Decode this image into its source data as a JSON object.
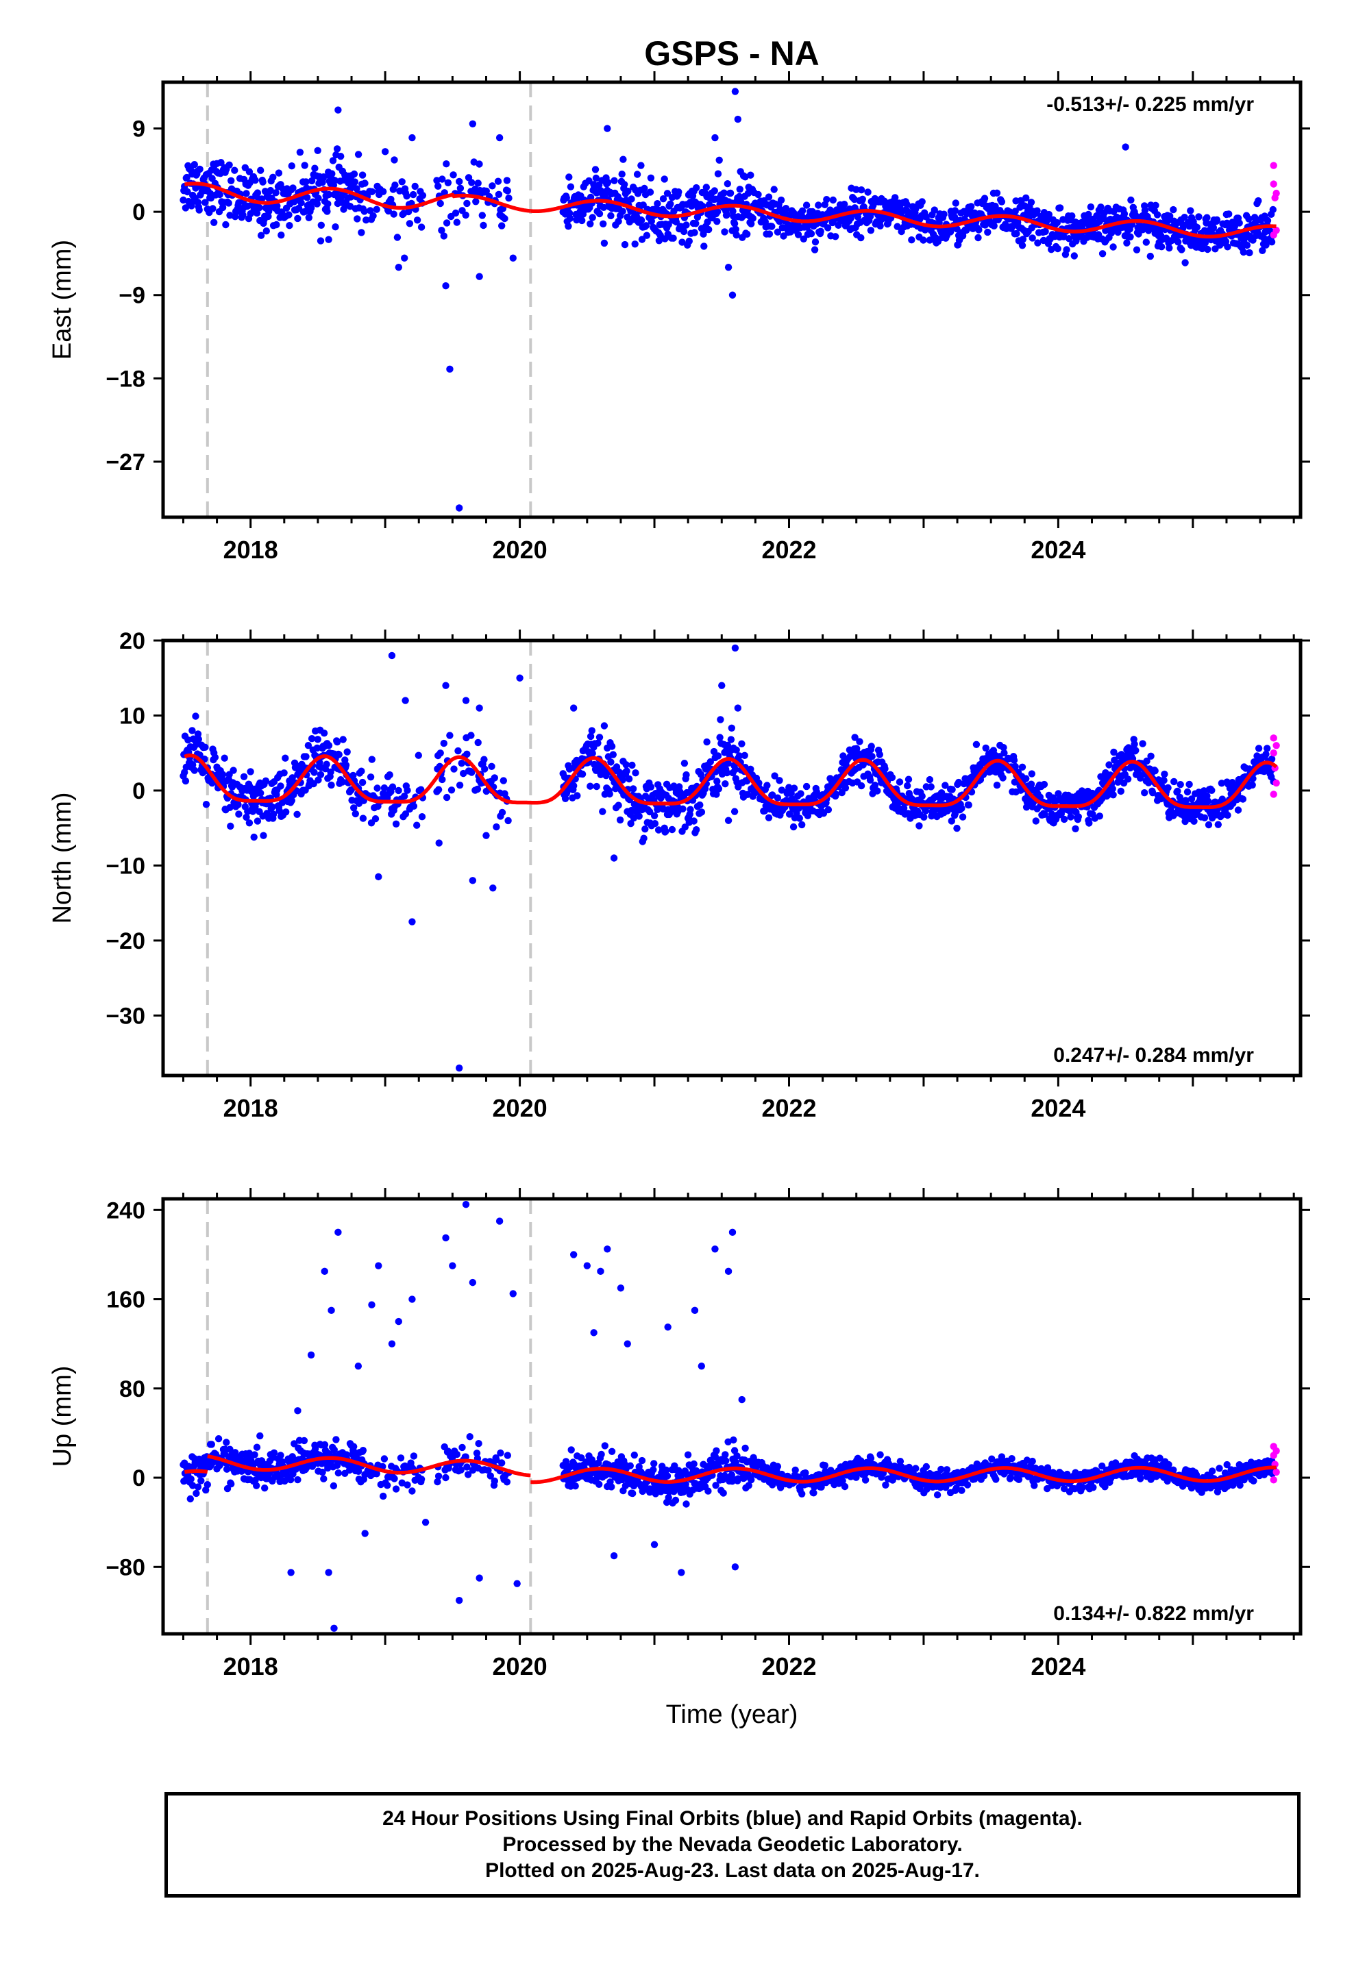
{
  "title": "GSPS - NA",
  "xlabel": "Time (year)",
  "caption": [
    "24 Hour Positions Using Final Orbits (blue) and Rapid Orbits (magenta).",
    "Processed by the Nevada Geodetic Laboratory.",
    "Plotted on 2025-Aug-23. Last data on 2025-Aug-17."
  ],
  "colors": {
    "final": "#0000ff",
    "rapid": "#ff00ff",
    "model": "#ff0000",
    "event": "#c8c8c8"
  },
  "chart_data": [
    {
      "type": "scatter",
      "ylabel": "East (mm)",
      "rate": "-0.513+/- 0.225 mm/yr",
      "rate_position": "top-right",
      "xlim": [
        2017.35,
        2025.8
      ],
      "ylim": [
        -33,
        14
      ],
      "yticks": [
        9,
        0,
        -9,
        -18,
        -27
      ],
      "ytick_labels": [
        "9",
        "0",
        "−9",
        "−18",
        "−27"
      ],
      "xticks": [
        2018,
        2020,
        2022,
        2024
      ],
      "event_lines": [
        2017.68,
        2020.08
      ],
      "series": [
        {
          "name": "Final Orbits",
          "color": "#0000ff",
          "outliers": [
            [
              2018.65,
              11
            ],
            [
              2019.0,
              6.5
            ],
            [
              2019.2,
              8
            ],
            [
              2019.45,
              -8
            ],
            [
              2019.48,
              -17
            ],
            [
              2019.55,
              -32
            ],
            [
              2019.65,
              9.5
            ],
            [
              2019.7,
              -7
            ],
            [
              2019.85,
              8
            ],
            [
              2019.95,
              -5
            ],
            [
              2020.9,
              5
            ],
            [
              2021.45,
              8
            ],
            [
              2021.55,
              -6
            ],
            [
              2021.58,
              -9
            ],
            [
              2021.6,
              13
            ],
            [
              2021.62,
              10
            ],
            [
              2020.65,
              9
            ],
            [
              2019.1,
              -6
            ],
            [
              2024.5,
              7
            ],
            [
              2018.58,
              -3
            ]
          ]
        },
        {
          "name": "Rapid Orbits",
          "color": "#ff00ff",
          "points": [
            [
              2025.6,
              5
            ],
            [
              2025.6,
              3
            ],
            [
              2025.61,
              1.5
            ],
            [
              2025.62,
              -2
            ],
            [
              2025.6,
              -2.5
            ],
            [
              2025.62,
              2
            ]
          ]
        }
      ],
      "model": {
        "components": [
          {
            "from": 2017.35,
            "to": 2020.08,
            "offset": 0
          },
          {
            "from": 2020.08,
            "to": 2025.62,
            "offset": 0
          }
        ]
      }
    },
    {
      "type": "scatter",
      "ylabel": "North (mm)",
      "rate": "0.247+/- 0.284 mm/yr",
      "rate_position": "bottom-right",
      "xlim": [
        2017.35,
        2025.8
      ],
      "ylim": [
        -38,
        20
      ],
      "yticks": [
        20,
        10,
        0,
        -10,
        -20,
        -30
      ],
      "ytick_labels": [
        "20",
        "10",
        "0",
        "−10",
        "−20",
        "−30"
      ],
      "xticks": [
        2018,
        2020,
        2022,
        2024
      ],
      "event_lines": [
        2017.68,
        2020.08
      ],
      "series": [
        {
          "name": "Final Orbits",
          "color": "#0000ff",
          "outliers": [
            [
              2018.95,
              -11.5
            ],
            [
              2019.05,
              18
            ],
            [
              2019.15,
              12
            ],
            [
              2019.2,
              -17.5
            ],
            [
              2019.45,
              14
            ],
            [
              2019.55,
              -37
            ],
            [
              2019.6,
              12
            ],
            [
              2019.65,
              -12
            ],
            [
              2019.8,
              -13
            ],
            [
              2020.0,
              15
            ],
            [
              2019.4,
              -7
            ],
            [
              2019.7,
              11
            ],
            [
              2020.7,
              -9
            ],
            [
              2021.5,
              14
            ],
            [
              2021.6,
              19
            ],
            [
              2021.62,
              11
            ],
            [
              2021.55,
              -4
            ],
            [
              2020.4,
              11
            ],
            [
              2019.75,
              -6
            ]
          ]
        },
        {
          "name": "Rapid Orbits",
          "color": "#ff00ff",
          "points": [
            [
              2025.6,
              7
            ],
            [
              2025.6,
              5
            ],
            [
              2025.61,
              3
            ],
            [
              2025.62,
              1
            ],
            [
              2025.6,
              -0.5
            ],
            [
              2025.62,
              6
            ]
          ]
        }
      ],
      "model": {
        "components": [
          {
            "from": 2017.35,
            "to": 2025.62,
            "offset": 0
          }
        ]
      }
    },
    {
      "type": "scatter",
      "ylabel": "Up (mm)",
      "rate": "0.134+/- 0.822 mm/yr",
      "rate_position": "bottom-right",
      "xlim": [
        2017.35,
        2025.8
      ],
      "ylim": [
        -140,
        250
      ],
      "yticks": [
        240,
        160,
        80,
        0,
        -80
      ],
      "ytick_labels": [
        "240",
        "160",
        "80",
        "0",
        "−80"
      ],
      "xticks": [
        2018,
        2020,
        2022,
        2024
      ],
      "event_lines": [
        2017.68,
        2020.08
      ],
      "series": [
        {
          "name": "Final Orbits",
          "color": "#0000ff",
          "outliers": [
            [
              2018.55,
              185
            ],
            [
              2018.6,
              150
            ],
            [
              2018.65,
              220
            ],
            [
              2018.58,
              -85
            ],
            [
              2018.62,
              -135
            ],
            [
              2018.9,
              155
            ],
            [
              2018.95,
              190
            ],
            [
              2019.1,
              140
            ],
            [
              2019.2,
              160
            ],
            [
              2019.45,
              215
            ],
            [
              2019.5,
              190
            ],
            [
              2019.55,
              -110
            ],
            [
              2019.6,
              245
            ],
            [
              2019.65,
              175
            ],
            [
              2019.7,
              -90
            ],
            [
              2019.85,
              230
            ],
            [
              2019.95,
              165
            ],
            [
              2019.98,
              -95
            ],
            [
              2020.4,
              200
            ],
            [
              2020.5,
              190
            ],
            [
              2020.6,
              185
            ],
            [
              2020.65,
              205
            ],
            [
              2020.7,
              -70
            ],
            [
              2020.75,
              170
            ],
            [
              2021.1,
              135
            ],
            [
              2021.2,
              -85
            ],
            [
              2021.3,
              150
            ],
            [
              2021.45,
              205
            ],
            [
              2021.55,
              185
            ],
            [
              2021.58,
              220
            ],
            [
              2021.6,
              -80
            ],
            [
              2021.65,
              70
            ],
            [
              2018.3,
              -85
            ],
            [
              2018.35,
              60
            ],
            [
              2018.45,
              110
            ],
            [
              2018.8,
              100
            ],
            [
              2018.85,
              -50
            ],
            [
              2019.05,
              120
            ],
            [
              2019.3,
              -40
            ],
            [
              2020.55,
              130
            ],
            [
              2020.8,
              120
            ],
            [
              2021.0,
              -60
            ],
            [
              2021.35,
              100
            ]
          ]
        },
        {
          "name": "Rapid Orbits",
          "color": "#ff00ff",
          "points": [
            [
              2025.6,
              28
            ],
            [
              2025.6,
              20
            ],
            [
              2025.61,
              12
            ],
            [
              2025.62,
              5
            ],
            [
              2025.6,
              -2
            ],
            [
              2025.62,
              24
            ]
          ]
        }
      ],
      "model": {
        "components": [
          {
            "from": 2017.35,
            "to": 2017.68,
            "offset": 0
          },
          {
            "from": 2017.68,
            "to": 2020.08,
            "offset": 0
          },
          {
            "from": 2020.08,
            "to": 2025.62,
            "offset": 0
          }
        ]
      }
    }
  ]
}
